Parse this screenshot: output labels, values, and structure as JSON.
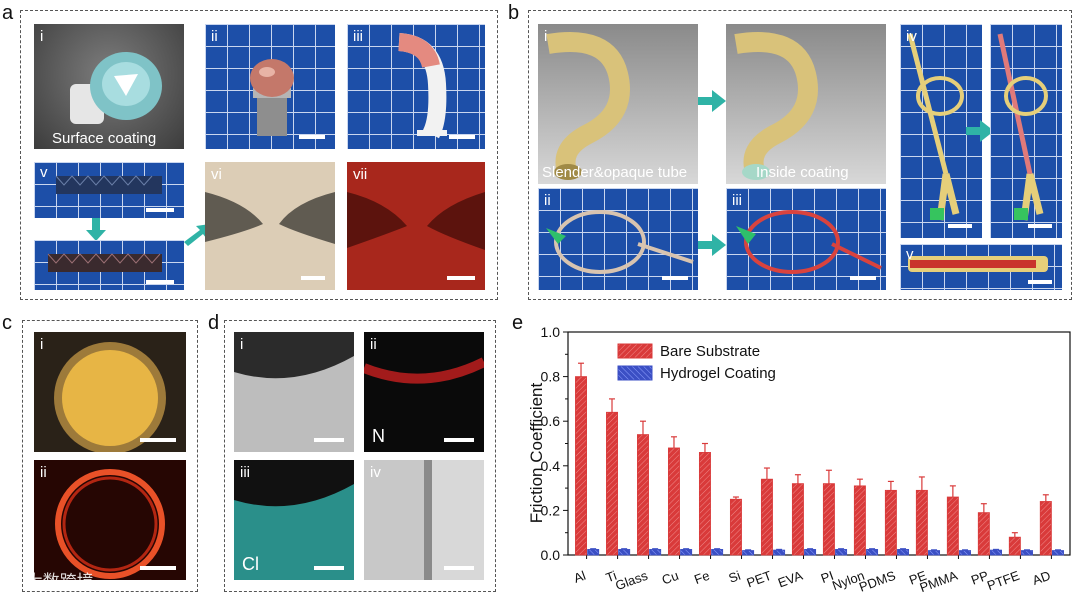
{
  "panels": {
    "a": "a",
    "b": "b",
    "c": "c",
    "d": "d",
    "e": "e"
  },
  "a_tiles": {
    "i": "i",
    "ii": "ii",
    "iii": "iii",
    "v": "v",
    "vi": "vi",
    "vii": "vii",
    "caption_i": "Surface coating"
  },
  "b_tiles": {
    "i": "i",
    "ii": "ii",
    "iii": "iii",
    "iv": "iv",
    "v": "v",
    "caption_i": "Slender&opaque tube",
    "caption_inside": "Inside coating"
  },
  "c_tiles": {
    "i": "i",
    "ii": "ii"
  },
  "d_tiles": {
    "i": "i",
    "ii": "ii",
    "iii": "iii",
    "iv": "iv",
    "N": "N",
    "Cl": "Cl"
  },
  "watermark": "⚭ 大数跨境",
  "chart_data": {
    "type": "bar",
    "ylabel": "Friction Coefficient",
    "ylim": [
      0.0,
      1.0
    ],
    "yticks": [
      "0.0",
      "0.2",
      "0.4",
      "0.6",
      "0.8",
      "1.0"
    ],
    "categories": [
      "Al",
      "Ti",
      "Glass",
      "Cu",
      "Fe",
      "Si",
      "PET",
      "EVA",
      "PI",
      "Nylon",
      "PDMS",
      "PE",
      "PMMA",
      "PP",
      "PTFE",
      "AD"
    ],
    "series": [
      {
        "name": "Bare Substrate",
        "color": "#d93a3a",
        "values": [
          0.8,
          0.64,
          0.54,
          0.48,
          0.46,
          0.25,
          0.34,
          0.32,
          0.32,
          0.31,
          0.29,
          0.29,
          0.26,
          0.19,
          0.08,
          0.24
        ],
        "errors": [
          0.06,
          0.06,
          0.06,
          0.05,
          0.04,
          0.01,
          0.05,
          0.04,
          0.06,
          0.03,
          0.04,
          0.06,
          0.05,
          0.04,
          0.02,
          0.03
        ]
      },
      {
        "name": "Hydrogel Coating",
        "color": "#3b4fc4",
        "values": [
          0.025,
          0.025,
          0.025,
          0.025,
          0.025,
          0.02,
          0.022,
          0.025,
          0.025,
          0.025,
          0.025,
          0.02,
          0.02,
          0.022,
          0.02,
          0.02
        ],
        "errors": [
          0.003,
          0.003,
          0.003,
          0.003,
          0.003,
          0.003,
          0.003,
          0.003,
          0.003,
          0.003,
          0.003,
          0.003,
          0.003,
          0.003,
          0.003,
          0.003
        ]
      }
    ],
    "legend": "top-left"
  }
}
